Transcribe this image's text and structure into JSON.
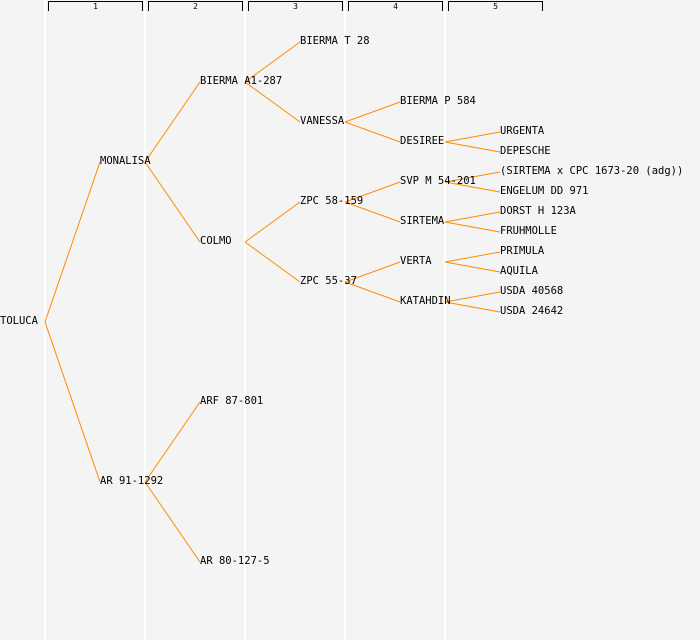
{
  "columns": [
    "1",
    "2",
    "3",
    "4",
    "5"
  ],
  "line_color": "#ff8c00",
  "tree": {
    "name": "TOLUCA",
    "children": [
      {
        "name": "MONALISA",
        "children": [
          {
            "name": "BIERMA A1-287",
            "children": [
              {
                "name": "BIERMA T 28"
              },
              {
                "name": "VANESSA",
                "children": [
                  {
                    "name": "BIERMA P 584"
                  },
                  {
                    "name": "DESIREE",
                    "children": [
                      {
                        "name": "URGENTA"
                      },
                      {
                        "name": "DEPESCHE"
                      }
                    ]
                  }
                ]
              }
            ]
          },
          {
            "name": "COLMO",
            "children": [
              {
                "name": "ZPC 58-159",
                "children": [
                  {
                    "name": "SVP M 54-201",
                    "children": [
                      {
                        "name": "(SIRTEMA x CPC 1673-20 (adg))"
                      },
                      {
                        "name": "ENGELUM DD 971"
                      }
                    ]
                  },
                  {
                    "name": "SIRTEMA",
                    "children": [
                      {
                        "name": "DORST H 123A"
                      },
                      {
                        "name": "FRUHMOLLE"
                      }
                    ]
                  }
                ]
              },
              {
                "name": "ZPC 55-37",
                "children": [
                  {
                    "name": "VERTA",
                    "children": [
                      {
                        "name": "PRIMULA"
                      },
                      {
                        "name": "AQUILA"
                      }
                    ]
                  },
                  {
                    "name": "KATAHDIN",
                    "children": [
                      {
                        "name": "USDA 40568"
                      },
                      {
                        "name": "USDA 24642"
                      }
                    ]
                  }
                ]
              }
            ]
          }
        ]
      },
      {
        "name": "AR 91-1292",
        "children": [
          {
            "name": "ARF 87-801"
          },
          {
            "name": "AR 80-127-5"
          }
        ]
      }
    ]
  }
}
